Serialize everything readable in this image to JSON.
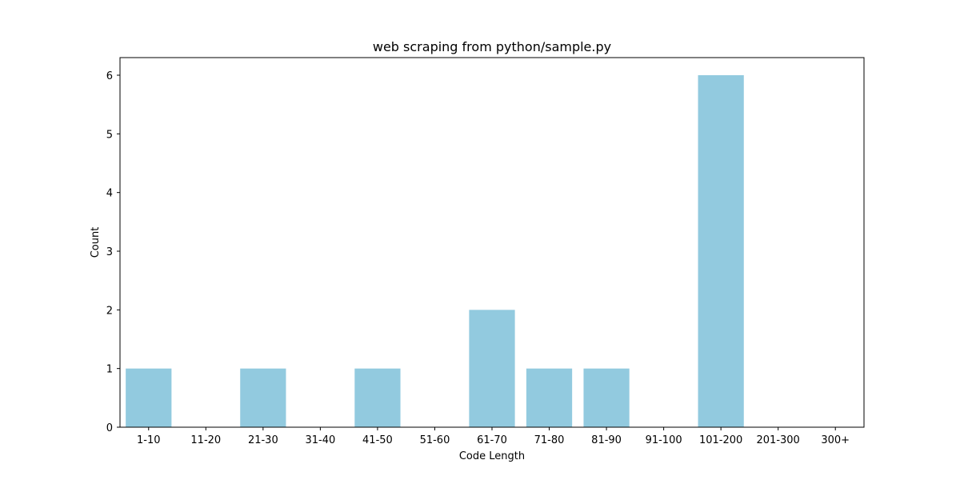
{
  "chart_data": {
    "type": "bar",
    "title": "web scraping from python/sample.py",
    "xlabel": "Code Length",
    "ylabel": "Count",
    "categories": [
      "1-10",
      "11-20",
      "21-30",
      "31-40",
      "41-50",
      "51-60",
      "61-70",
      "71-80",
      "81-90",
      "91-100",
      "101-200",
      "201-300",
      "300+"
    ],
    "values": [
      1,
      0,
      1,
      0,
      1,
      0,
      2,
      1,
      1,
      0,
      6,
      0,
      0
    ],
    "ylim": [
      0,
      6.3
    ],
    "yticks": [
      0,
      1,
      2,
      3,
      4,
      5,
      6
    ],
    "bar_color": "#92cadf",
    "grid": false,
    "legend": "none"
  }
}
